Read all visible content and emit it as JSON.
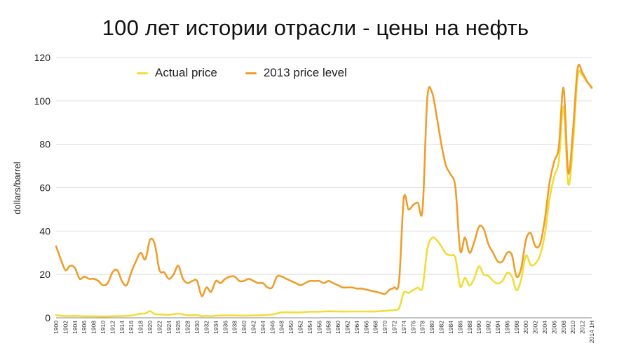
{
  "page": {
    "title": "100 лет истории отрасли - цены на нефть"
  },
  "chart_data": {
    "type": "line",
    "title": "100 лет истории отрасли - цены на нефть",
    "xlabel": "",
    "ylabel": "dollars/barrel",
    "ylim": [
      0,
      120
    ],
    "yticks": [
      0,
      20,
      40,
      60,
      80,
      100,
      120
    ],
    "xlim": [
      1900,
      2014
    ],
    "xtick_labels": [
      "1900",
      "1902",
      "1904",
      "1906",
      "1908",
      "1910",
      "1912",
      "1914",
      "1916",
      "1918",
      "1920",
      "1922",
      "1924",
      "1926",
      "1928",
      "1930",
      "1932",
      "1934",
      "1936",
      "1938",
      "1940",
      "1942",
      "1944",
      "1946",
      "1948",
      "1950",
      "1952",
      "1954",
      "1956",
      "1958",
      "1960",
      "1962",
      "1964",
      "1966",
      "1968",
      "1970",
      "1972",
      "1974",
      "1976",
      "1978",
      "1980",
      "1982",
      "1984",
      "1986",
      "1988",
      "1990",
      "1992",
      "1994",
      "1996",
      "1998",
      "2000",
      "2002",
      "2004",
      "2006",
      "2008",
      "2010",
      "2012",
      "2014 1H"
    ],
    "grid": "horizontal",
    "legend_position": "top-left",
    "series": [
      {
        "name": "Actual price",
        "color": "#F2DC3A",
        "points": [
          [
            1900,
            1.2
          ],
          [
            1902,
            0.8
          ],
          [
            1904,
            0.9
          ],
          [
            1906,
            0.7
          ],
          [
            1908,
            0.7
          ],
          [
            1910,
            0.6
          ],
          [
            1912,
            0.7
          ],
          [
            1914,
            0.8
          ],
          [
            1916,
            1.1
          ],
          [
            1918,
            1.9
          ],
          [
            1919,
            2.0
          ],
          [
            1920,
            3.1
          ],
          [
            1921,
            1.7
          ],
          [
            1922,
            1.6
          ],
          [
            1924,
            1.4
          ],
          [
            1926,
            1.9
          ],
          [
            1928,
            1.2
          ],
          [
            1930,
            1.2
          ],
          [
            1931,
            0.7
          ],
          [
            1932,
            0.9
          ],
          [
            1933,
            0.7
          ],
          [
            1934,
            1.0
          ],
          [
            1936,
            1.1
          ],
          [
            1938,
            1.1
          ],
          [
            1940,
            1.0
          ],
          [
            1942,
            1.1
          ],
          [
            1944,
            1.2
          ],
          [
            1946,
            1.6
          ],
          [
            1947,
            2.0
          ],
          [
            1948,
            2.5
          ],
          [
            1950,
            2.5
          ],
          [
            1952,
            2.5
          ],
          [
            1954,
            2.8
          ],
          [
            1956,
            2.8
          ],
          [
            1958,
            3.0
          ],
          [
            1960,
            2.9
          ],
          [
            1962,
            2.9
          ],
          [
            1964,
            2.9
          ],
          [
            1966,
            2.9
          ],
          [
            1968,
            2.9
          ],
          [
            1970,
            3.2
          ],
          [
            1972,
            3.6
          ],
          [
            1973,
            4.5
          ],
          [
            1974,
            11.6
          ],
          [
            1975,
            11.5
          ],
          [
            1976,
            12.8
          ],
          [
            1977,
            13.9
          ],
          [
            1978,
            14.0
          ],
          [
            1979,
            31.6
          ],
          [
            1980,
            36.8
          ],
          [
            1981,
            35.9
          ],
          [
            1982,
            32.9
          ],
          [
            1983,
            29.6
          ],
          [
            1984,
            28.8
          ],
          [
            1985,
            27.6
          ],
          [
            1986,
            14.4
          ],
          [
            1987,
            18.4
          ],
          [
            1988,
            14.9
          ],
          [
            1989,
            18.2
          ],
          [
            1990,
            23.7
          ],
          [
            1991,
            20.0
          ],
          [
            1992,
            19.3
          ],
          [
            1993,
            17.0
          ],
          [
            1994,
            15.8
          ],
          [
            1995,
            17.0
          ],
          [
            1996,
            20.7
          ],
          [
            1997,
            19.1
          ],
          [
            1998,
            12.7
          ],
          [
            1999,
            17.9
          ],
          [
            2000,
            28.7
          ],
          [
            2001,
            24.4
          ],
          [
            2002,
            25.0
          ],
          [
            2003,
            28.8
          ],
          [
            2004,
            38.3
          ],
          [
            2005,
            54.5
          ],
          [
            2006,
            65.1
          ],
          [
            2007,
            72.4
          ],
          [
            2008,
            97.3
          ],
          [
            2009,
            61.7
          ],
          [
            2010,
            79.5
          ],
          [
            2011,
            111.3
          ],
          [
            2012,
            111.7
          ],
          [
            2013,
            108.7
          ],
          [
            2014,
            106.5
          ]
        ]
      },
      {
        "name": "2013 price level",
        "color": "#EE9E2C",
        "points": [
          [
            1900,
            33
          ],
          [
            1901,
            27
          ],
          [
            1902,
            22
          ],
          [
            1903,
            24
          ],
          [
            1904,
            23
          ],
          [
            1905,
            18
          ],
          [
            1906,
            19
          ],
          [
            1907,
            18
          ],
          [
            1908,
            18
          ],
          [
            1909,
            17
          ],
          [
            1910,
            15
          ],
          [
            1911,
            16
          ],
          [
            1912,
            21
          ],
          [
            1913,
            22
          ],
          [
            1914,
            17
          ],
          [
            1915,
            15
          ],
          [
            1916,
            21
          ],
          [
            1917,
            26
          ],
          [
            1918,
            30
          ],
          [
            1919,
            27
          ],
          [
            1920,
            36
          ],
          [
            1921,
            34
          ],
          [
            1922,
            22
          ],
          [
            1923,
            21
          ],
          [
            1924,
            18
          ],
          [
            1925,
            20
          ],
          [
            1926,
            24
          ],
          [
            1927,
            18
          ],
          [
            1928,
            16
          ],
          [
            1929,
            17
          ],
          [
            1930,
            17
          ],
          [
            1931,
            10
          ],
          [
            1932,
            14
          ],
          [
            1933,
            12
          ],
          [
            1934,
            17
          ],
          [
            1935,
            16
          ],
          [
            1936,
            18
          ],
          [
            1937,
            19
          ],
          [
            1938,
            19
          ],
          [
            1939,
            17
          ],
          [
            1940,
            17
          ],
          [
            1941,
            18
          ],
          [
            1942,
            17
          ],
          [
            1943,
            16
          ],
          [
            1944,
            16
          ],
          [
            1945,
            14
          ],
          [
            1946,
            14
          ],
          [
            1947,
            19
          ],
          [
            1948,
            19
          ],
          [
            1949,
            18
          ],
          [
            1950,
            17
          ],
          [
            1951,
            16
          ],
          [
            1952,
            15
          ],
          [
            1953,
            16
          ],
          [
            1954,
            17
          ],
          [
            1955,
            17
          ],
          [
            1956,
            17
          ],
          [
            1957,
            16
          ],
          [
            1958,
            17
          ],
          [
            1959,
            16
          ],
          [
            1960,
            15
          ],
          [
            1961,
            14
          ],
          [
            1962,
            14
          ],
          [
            1963,
            14
          ],
          [
            1964,
            13.5
          ],
          [
            1965,
            13.5
          ],
          [
            1966,
            13
          ],
          [
            1967,
            12.5
          ],
          [
            1968,
            12
          ],
          [
            1969,
            11.5
          ],
          [
            1970,
            11
          ],
          [
            1971,
            13
          ],
          [
            1972,
            14
          ],
          [
            1973,
            17
          ],
          [
            1974,
            55
          ],
          [
            1975,
            50
          ],
          [
            1976,
            52
          ],
          [
            1977,
            53
          ],
          [
            1978,
            50
          ],
          [
            1979,
            101
          ],
          [
            1980,
            104
          ],
          [
            1981,
            93
          ],
          [
            1982,
            80
          ],
          [
            1983,
            70
          ],
          [
            1984,
            66
          ],
          [
            1985,
            60
          ],
          [
            1986,
            31
          ],
          [
            1987,
            37
          ],
          [
            1988,
            30
          ],
          [
            1989,
            35
          ],
          [
            1990,
            42
          ],
          [
            1991,
            41
          ],
          [
            1992,
            34
          ],
          [
            1993,
            30
          ],
          [
            1994,
            26
          ],
          [
            1995,
            26
          ],
          [
            1996,
            30
          ],
          [
            1997,
            29
          ],
          [
            1998,
            19
          ],
          [
            1999,
            23
          ],
          [
            2000,
            36
          ],
          [
            2001,
            39
          ],
          [
            2002,
            33
          ],
          [
            2003,
            34
          ],
          [
            2004,
            45
          ],
          [
            2005,
            62
          ],
          [
            2006,
            72
          ],
          [
            2007,
            79
          ],
          [
            2008,
            106
          ],
          [
            2009,
            67
          ],
          [
            2010,
            86
          ],
          [
            2011,
            115
          ],
          [
            2012,
            113
          ],
          [
            2013,
            109
          ],
          [
            2014,
            106
          ]
        ]
      }
    ]
  }
}
